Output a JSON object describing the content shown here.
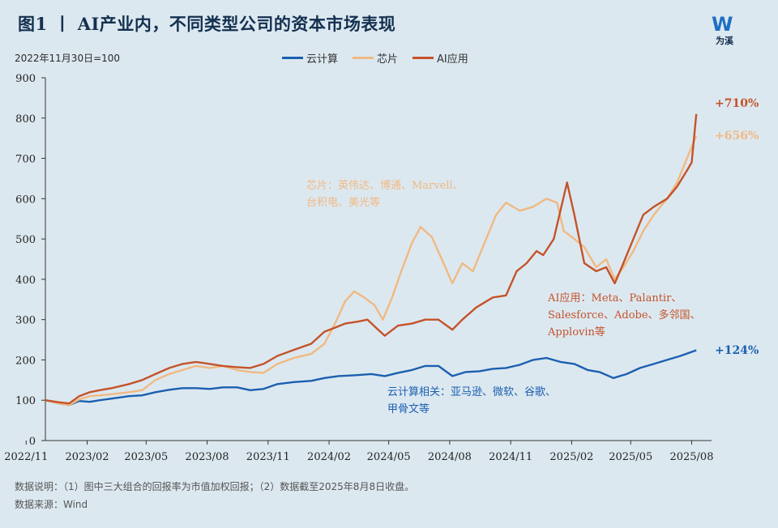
{
  "header": {
    "title": "图1 丨 AI产业内，不同类型公司的资本市场表现",
    "subtitle": "2022年11月30日=100",
    "logo_text": "为溪"
  },
  "colors": {
    "cloud": "#1b5fb0",
    "chip": "#f0b982",
    "ai": "#c4532a",
    "axis": "#333333"
  },
  "chart_data": {
    "type": "line",
    "ylim": [
      0,
      900
    ],
    "yticks": [
      0,
      100,
      200,
      300,
      400,
      500,
      600,
      700,
      800,
      900
    ],
    "xlim": [
      "2022-11-30",
      "2025-08-31"
    ],
    "xticks": [
      "2022/11",
      "2023/02",
      "2023/05",
      "2023/08",
      "2023/11",
      "2024/02",
      "2024/05",
      "2024/08",
      "2024/11",
      "2025/02",
      "2025/05",
      "2025/08"
    ],
    "legend_position": "top-center",
    "series": [
      {
        "name": "云计算",
        "color_key": "cloud",
        "end_label": "+124%",
        "annotation": "云计算相关：亚马逊、微软、谷歌、甲骨文等",
        "points": [
          [
            "2022-11-30",
            100
          ],
          [
            "2022-12-20",
            92
          ],
          [
            "2023-01-05",
            88
          ],
          [
            "2023-01-20",
            98
          ],
          [
            "2023-02-05",
            96
          ],
          [
            "2023-02-20",
            100
          ],
          [
            "2023-03-10",
            104
          ],
          [
            "2023-04-05",
            110
          ],
          [
            "2023-04-25",
            112
          ],
          [
            "2023-05-15",
            120
          ],
          [
            "2023-06-05",
            126
          ],
          [
            "2023-06-25",
            130
          ],
          [
            "2023-07-15",
            130
          ],
          [
            "2023-08-05",
            128
          ],
          [
            "2023-08-25",
            132
          ],
          [
            "2023-09-15",
            132
          ],
          [
            "2023-10-05",
            125
          ],
          [
            "2023-10-25",
            128
          ],
          [
            "2023-11-15",
            140
          ],
          [
            "2023-12-10",
            145
          ],
          [
            "2024-01-05",
            148
          ],
          [
            "2024-01-25",
            155
          ],
          [
            "2024-02-15",
            160
          ],
          [
            "2024-03-10",
            162
          ],
          [
            "2024-04-05",
            165
          ],
          [
            "2024-04-25",
            160
          ],
          [
            "2024-05-15",
            168
          ],
          [
            "2024-06-05",
            175
          ],
          [
            "2024-06-25",
            185
          ],
          [
            "2024-07-15",
            185
          ],
          [
            "2024-08-05",
            160
          ],
          [
            "2024-08-25",
            170
          ],
          [
            "2024-09-15",
            172
          ],
          [
            "2024-10-05",
            178
          ],
          [
            "2024-10-25",
            180
          ],
          [
            "2024-11-15",
            188
          ],
          [
            "2024-12-05",
            200
          ],
          [
            "2024-12-25",
            205
          ],
          [
            "2025-01-15",
            195
          ],
          [
            "2025-02-05",
            190
          ],
          [
            "2025-02-25",
            175
          ],
          [
            "2025-03-15",
            170
          ],
          [
            "2025-04-05",
            155
          ],
          [
            "2025-04-25",
            165
          ],
          [
            "2025-05-15",
            180
          ],
          [
            "2025-06-05",
            190
          ],
          [
            "2025-06-25",
            200
          ],
          [
            "2025-07-15",
            210
          ],
          [
            "2025-08-08",
            224
          ]
        ]
      },
      {
        "name": "芯片",
        "color_key": "chip",
        "end_label": "+656%",
        "annotation": "芯片：英伟达、博通、Marvell、台积电、美光等",
        "points": [
          [
            "2022-11-30",
            100
          ],
          [
            "2022-12-20",
            92
          ],
          [
            "2023-01-05",
            88
          ],
          [
            "2023-01-20",
            102
          ],
          [
            "2023-02-05",
            110
          ],
          [
            "2023-02-20",
            112
          ],
          [
            "2023-03-10",
            115
          ],
          [
            "2023-04-05",
            120
          ],
          [
            "2023-04-25",
            125
          ],
          [
            "2023-05-15",
            150
          ],
          [
            "2023-06-05",
            165
          ],
          [
            "2023-06-25",
            175
          ],
          [
            "2023-07-15",
            185
          ],
          [
            "2023-08-05",
            180
          ],
          [
            "2023-08-25",
            185
          ],
          [
            "2023-09-15",
            175
          ],
          [
            "2023-10-05",
            170
          ],
          [
            "2023-10-25",
            168
          ],
          [
            "2023-11-15",
            190
          ],
          [
            "2023-12-10",
            205
          ],
          [
            "2024-01-05",
            215
          ],
          [
            "2024-01-25",
            240
          ],
          [
            "2024-02-10",
            290
          ],
          [
            "2024-02-25",
            345
          ],
          [
            "2024-03-10",
            370
          ],
          [
            "2024-03-25",
            355
          ],
          [
            "2024-04-10",
            335
          ],
          [
            "2024-04-22",
            300
          ],
          [
            "2024-05-05",
            350
          ],
          [
            "2024-05-20",
            420
          ],
          [
            "2024-06-05",
            490
          ],
          [
            "2024-06-18",
            530
          ],
          [
            "2024-07-05",
            505
          ],
          [
            "2024-07-20",
            450
          ],
          [
            "2024-08-05",
            390
          ],
          [
            "2024-08-20",
            440
          ],
          [
            "2024-09-05",
            420
          ],
          [
            "2024-09-20",
            480
          ],
          [
            "2024-10-10",
            560
          ],
          [
            "2024-10-25",
            590
          ],
          [
            "2024-11-15",
            570
          ],
          [
            "2024-12-05",
            580
          ],
          [
            "2024-12-25",
            600
          ],
          [
            "2025-01-10",
            590
          ],
          [
            "2025-01-20",
            520
          ],
          [
            "2025-02-05",
            500
          ],
          [
            "2025-02-20",
            480
          ],
          [
            "2025-03-10",
            430
          ],
          [
            "2025-03-25",
            450
          ],
          [
            "2025-04-07",
            400
          ],
          [
            "2025-04-20",
            430
          ],
          [
            "2025-05-05",
            470
          ],
          [
            "2025-05-20",
            520
          ],
          [
            "2025-06-05",
            560
          ],
          [
            "2025-06-25",
            600
          ],
          [
            "2025-07-10",
            640
          ],
          [
            "2025-07-25",
            700
          ],
          [
            "2025-08-08",
            756
          ]
        ]
      },
      {
        "name": "AI应用",
        "color_key": "ai",
        "end_label": "+710%",
        "annotation": "AI应用：Meta、Palantir、Salesforce、Adobe、多邻国、Applovin等",
        "points": [
          [
            "2022-11-30",
            100
          ],
          [
            "2022-12-20",
            95
          ],
          [
            "2023-01-05",
            92
          ],
          [
            "2023-01-20",
            110
          ],
          [
            "2023-02-05",
            120
          ],
          [
            "2023-02-20",
            125
          ],
          [
            "2023-03-10",
            130
          ],
          [
            "2023-04-05",
            140
          ],
          [
            "2023-04-25",
            150
          ],
          [
            "2023-05-15",
            165
          ],
          [
            "2023-06-05",
            180
          ],
          [
            "2023-06-25",
            190
          ],
          [
            "2023-07-15",
            195
          ],
          [
            "2023-08-05",
            190
          ],
          [
            "2023-08-25",
            185
          ],
          [
            "2023-09-15",
            182
          ],
          [
            "2023-10-05",
            180
          ],
          [
            "2023-10-25",
            190
          ],
          [
            "2023-11-15",
            210
          ],
          [
            "2023-12-10",
            225
          ],
          [
            "2024-01-05",
            240
          ],
          [
            "2024-01-25",
            270
          ],
          [
            "2024-02-10",
            280
          ],
          [
            "2024-02-25",
            290
          ],
          [
            "2024-03-15",
            295
          ],
          [
            "2024-03-30",
            300
          ],
          [
            "2024-04-15",
            275
          ],
          [
            "2024-04-25",
            260
          ],
          [
            "2024-05-15",
            285
          ],
          [
            "2024-06-05",
            290
          ],
          [
            "2024-06-25",
            300
          ],
          [
            "2024-07-15",
            300
          ],
          [
            "2024-08-05",
            275
          ],
          [
            "2024-08-20",
            300
          ],
          [
            "2024-09-10",
            330
          ],
          [
            "2024-10-05",
            355
          ],
          [
            "2024-10-25",
            360
          ],
          [
            "2024-11-10",
            420
          ],
          [
            "2024-11-25",
            440
          ],
          [
            "2024-12-10",
            470
          ],
          [
            "2024-12-20",
            460
          ],
          [
            "2025-01-05",
            500
          ],
          [
            "2025-01-15",
            570
          ],
          [
            "2025-01-25",
            640
          ],
          [
            "2025-02-05",
            560
          ],
          [
            "2025-02-20",
            440
          ],
          [
            "2025-03-10",
            420
          ],
          [
            "2025-03-25",
            430
          ],
          [
            "2025-04-07",
            390
          ],
          [
            "2025-04-20",
            440
          ],
          [
            "2025-05-05",
            500
          ],
          [
            "2025-05-20",
            560
          ],
          [
            "2025-06-05",
            580
          ],
          [
            "2025-06-25",
            600
          ],
          [
            "2025-07-10",
            630
          ],
          [
            "2025-07-25",
            670
          ],
          [
            "2025-08-01",
            690
          ],
          [
            "2025-08-08",
            810
          ]
        ]
      }
    ]
  },
  "footnotes": {
    "note": "数据说明：（1）图中三大组合的回报率为市值加权回报；（2）数据截至2025年8月8日收盘。",
    "source": "数据来源：Wind"
  }
}
